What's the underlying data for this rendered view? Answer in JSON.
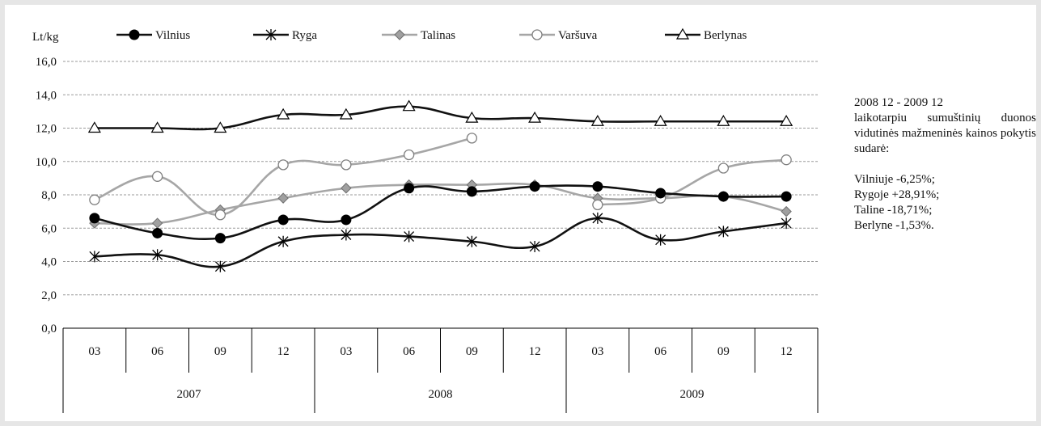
{
  "chart_data": {
    "type": "line",
    "ylabel": "Lt/kg",
    "ylim": [
      0,
      16
    ],
    "yticks": [
      "0,0",
      "2,0",
      "4,0",
      "6,0",
      "8,0",
      "10,0",
      "12,0",
      "14,0",
      "16,0"
    ],
    "categories": [
      "03",
      "06",
      "09",
      "12",
      "03",
      "06",
      "09",
      "12",
      "03",
      "06",
      "09",
      "12"
    ],
    "years": [
      "2007",
      "2008",
      "2009"
    ],
    "grid": true,
    "legend_position": "top",
    "series": [
      {
        "name": "Vilnius",
        "marker": "filled-circle",
        "color": "#000000",
        "values": [
          6.6,
          5.7,
          5.4,
          6.5,
          6.5,
          8.4,
          8.2,
          8.5,
          8.5,
          8.1,
          7.9,
          7.9
        ]
      },
      {
        "name": "Ryga",
        "marker": "asterisk",
        "color": "#000000",
        "values": [
          4.3,
          4.4,
          3.7,
          5.2,
          5.6,
          5.5,
          5.2,
          4.9,
          6.6,
          5.3,
          5.8,
          6.3
        ]
      },
      {
        "name": "Talinas",
        "marker": "diamond",
        "color": "#a6a6a6",
        "values": [
          6.3,
          6.3,
          7.1,
          7.8,
          8.4,
          8.6,
          8.6,
          8.6,
          7.8,
          7.8,
          7.9,
          7.0
        ]
      },
      {
        "name": "Varšuva",
        "marker": "open-circle",
        "color": "#a6a6a6",
        "values": [
          7.7,
          9.1,
          6.8,
          9.8,
          9.8,
          10.4,
          11.4,
          null,
          7.4,
          7.8,
          9.6,
          10.1
        ]
      },
      {
        "name": "Berlynas",
        "marker": "open-triangle",
        "color": "#000000",
        "values": [
          12.0,
          12.0,
          12.0,
          12.8,
          12.8,
          13.3,
          12.6,
          12.6,
          12.4,
          12.4,
          12.4,
          12.4
        ]
      }
    ]
  },
  "note": {
    "line1": "2008 12 - 2009 12",
    "line2": "laikotarpiu sumuštinių duonos vidutinės mažmeninės kainos pokytis sudarė:",
    "items": [
      "Vilniuje -6,25%;",
      "Rygoje +28,91%;",
      "Taline -18,71%;",
      "Berlyne -1,53%."
    ]
  }
}
